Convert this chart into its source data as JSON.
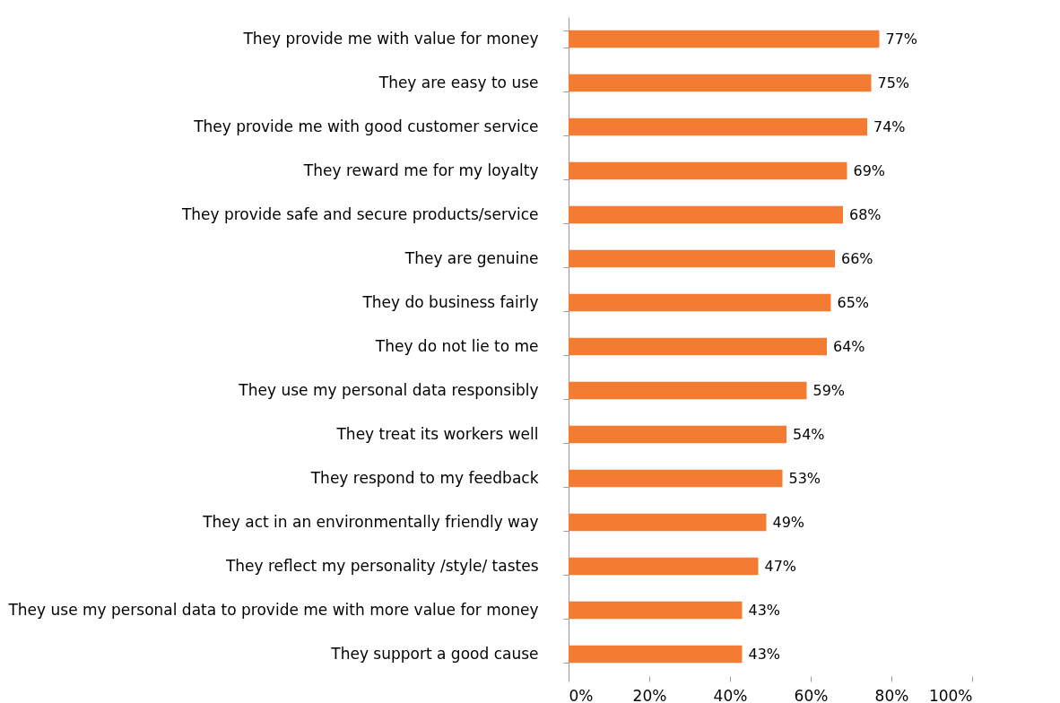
{
  "chart_data": {
    "type": "bar",
    "orientation": "horizontal",
    "categories": [
      "They provide me with value for money",
      "They are easy to use",
      "They provide me with good customer service",
      "They reward me for my loyalty",
      "They provide safe and secure products/service",
      "They are genuine",
      "They do business fairly",
      "They do not lie to me",
      "They use my personal data responsibly",
      "They treat its workers well",
      "They respond to my feedback",
      "They act in an environmentally friendly way",
      "They reflect my personality /style/ tastes",
      "They use my personal data to provide me with more value for money",
      "They support a good cause"
    ],
    "values": [
      77,
      75,
      74,
      69,
      68,
      66,
      65,
      64,
      59,
      54,
      53,
      49,
      47,
      43,
      43
    ],
    "value_labels": [
      "77%",
      "75%",
      "74%",
      "69%",
      "68%",
      "66%",
      "65%",
      "64%",
      "59%",
      "54%",
      "53%",
      "49%",
      "47%",
      "43%",
      "43%"
    ],
    "color": "#f47b32",
    "xlim": [
      0,
      100
    ],
    "xticks": [
      {
        "value": 0,
        "label": "0%"
      },
      {
        "value": 20,
        "label": "20%"
      },
      {
        "value": 40,
        "label": "40%"
      },
      {
        "value": 60,
        "label": "60%"
      },
      {
        "value": 80,
        "label": "80%"
      },
      {
        "value": 100,
        "label": "100%"
      }
    ],
    "grid": false
  }
}
